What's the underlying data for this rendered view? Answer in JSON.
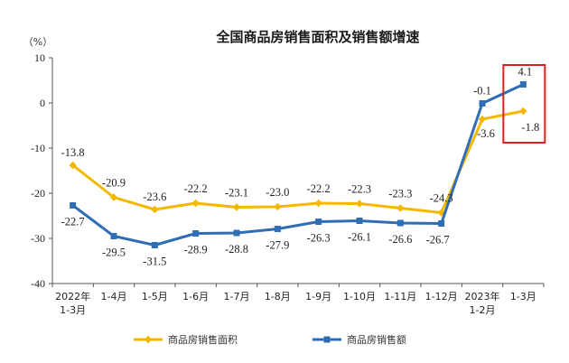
{
  "chart_data": {
    "type": "line",
    "title": "全国商品房销售面积及销售额增速",
    "unit": "（%）",
    "categories": [
      [
        "2022年",
        "1-3月"
      ],
      [
        "1-4月"
      ],
      [
        "1-5月"
      ],
      [
        "1-6月"
      ],
      [
        "1-7月"
      ],
      [
        "1-8月"
      ],
      [
        "1-9月"
      ],
      [
        "1-10月"
      ],
      [
        "1-11月"
      ],
      [
        "1-12月"
      ],
      [
        "2023年",
        "1-2月"
      ],
      [
        "1-3月"
      ]
    ],
    "ylim": [
      -40,
      10
    ],
    "yticks": [
      10,
      0,
      -10,
      -20,
      -30,
      -40
    ],
    "ytick_labels": [
      "10",
      "0",
      "-10",
      "-20",
      "-30",
      "-40"
    ],
    "series": [
      {
        "name": "商品房销售面积",
        "color": "#F5B800",
        "marker": "diamond",
        "values": [
          -13.8,
          -20.9,
          -23.6,
          -22.2,
          -23.1,
          -23.0,
          -22.2,
          -22.3,
          -23.3,
          -24.3,
          -3.6,
          -1.8
        ],
        "labels": [
          "-13.8",
          "-20.9",
          "-23.6",
          "-22.2",
          "-23.1",
          "-23.0",
          "-22.2",
          "-22.3",
          "-23.3",
          "-24.3",
          "-3.6",
          "-1.8"
        ]
      },
      {
        "name": "商品房销售额",
        "color": "#2F6DB5",
        "marker": "square",
        "values": [
          -22.7,
          -29.5,
          -31.5,
          -28.9,
          -28.8,
          -27.9,
          -26.3,
          -26.1,
          -26.6,
          -26.7,
          -0.1,
          4.1
        ],
        "labels": [
          "-22.7",
          "-29.5",
          "-31.5",
          "-28.9",
          "-28.8",
          "-27.9",
          "-26.3",
          "-26.1",
          "-26.6",
          "-26.7",
          "-0.1",
          "4.1"
        ]
      }
    ],
    "highlight": {
      "category_index": 11,
      "color": "#E02020"
    },
    "grid": false,
    "legend_position": "bottom"
  }
}
